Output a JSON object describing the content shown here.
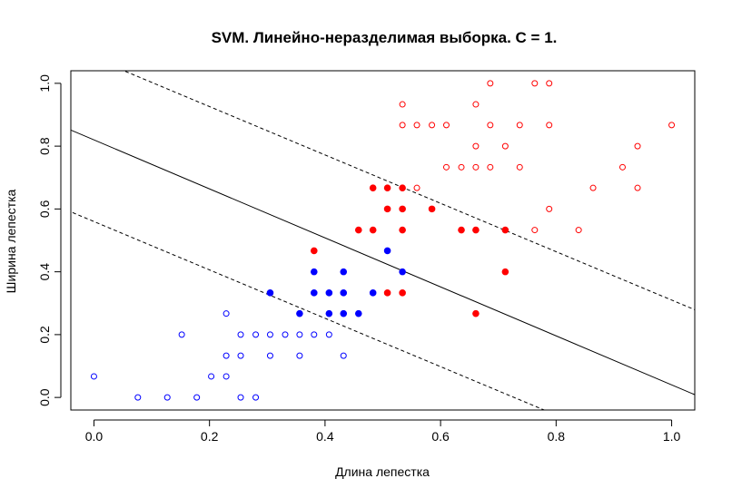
{
  "chart_data": {
    "type": "scatter",
    "title": "SVM. Линейно-неразделимая выборка. C = 1.",
    "xlabel": "Длина лепестка",
    "ylabel": "Ширина лепестка",
    "xlim": [
      -0.04,
      1.04
    ],
    "ylim": [
      -0.04,
      1.04
    ],
    "x_ticks": [
      "0.0",
      "0.2",
      "0.4",
      "0.6",
      "0.8",
      "1.0"
    ],
    "y_ticks": [
      "0.0",
      "0.2",
      "0.4",
      "0.6",
      "0.8",
      "1.0"
    ],
    "x_tick_values": [
      0,
      0.2,
      0.4,
      0.6,
      0.8,
      1.0
    ],
    "y_tick_values": [
      0,
      0.2,
      0.4,
      0.6,
      0.8,
      1.0
    ],
    "colors": {
      "class_a": "#0000ff",
      "class_b": "#ff0000",
      "lines": "#000000"
    },
    "decision_boundary": {
      "intercept": 0.82,
      "slope": -0.78
    },
    "margins": [
      {
        "intercept": 1.08,
        "slope": -0.77,
        "style": "dashed"
      },
      {
        "intercept": 0.56,
        "slope": -0.77,
        "style": "dashed"
      }
    ],
    "series": [
      {
        "class": "blue",
        "marker": "open-circle",
        "points": [
          [
            0.0,
            0.067
          ],
          [
            0.076,
            0.0
          ],
          [
            0.127,
            0.0
          ],
          [
            0.178,
            0.0
          ],
          [
            0.152,
            0.2
          ],
          [
            0.203,
            0.067
          ],
          [
            0.229,
            0.067
          ],
          [
            0.229,
            0.133
          ],
          [
            0.229,
            0.267
          ],
          [
            0.254,
            0.2
          ],
          [
            0.254,
            0.133
          ],
          [
            0.254,
            0.0
          ],
          [
            0.28,
            0.2
          ],
          [
            0.28,
            0.0
          ],
          [
            0.305,
            0.2
          ],
          [
            0.305,
            0.133
          ],
          [
            0.331,
            0.2
          ],
          [
            0.356,
            0.2
          ],
          [
            0.356,
            0.133
          ],
          [
            0.381,
            0.2
          ],
          [
            0.407,
            0.2
          ],
          [
            0.432,
            0.133
          ]
        ]
      },
      {
        "class": "blue",
        "marker": "filled-circle",
        "points": [
          [
            0.305,
            0.333
          ],
          [
            0.356,
            0.267
          ],
          [
            0.381,
            0.4
          ],
          [
            0.381,
            0.333
          ],
          [
            0.407,
            0.333
          ],
          [
            0.407,
            0.267
          ],
          [
            0.432,
            0.4
          ],
          [
            0.432,
            0.333
          ],
          [
            0.432,
            0.267
          ],
          [
            0.458,
            0.267
          ],
          [
            0.483,
            0.333
          ],
          [
            0.508,
            0.467
          ],
          [
            0.534,
            0.4
          ]
        ]
      },
      {
        "class": "red",
        "marker": "filled-circle",
        "points": [
          [
            0.381,
            0.467
          ],
          [
            0.458,
            0.533
          ],
          [
            0.483,
            0.667
          ],
          [
            0.483,
            0.533
          ],
          [
            0.508,
            0.667
          ],
          [
            0.508,
            0.6
          ],
          [
            0.508,
            0.333
          ],
          [
            0.534,
            0.667
          ],
          [
            0.534,
            0.6
          ],
          [
            0.534,
            0.533
          ],
          [
            0.534,
            0.333
          ],
          [
            0.585,
            0.6
          ],
          [
            0.636,
            0.533
          ],
          [
            0.661,
            0.533
          ],
          [
            0.661,
            0.267
          ],
          [
            0.712,
            0.533
          ],
          [
            0.712,
            0.4
          ]
        ]
      },
      {
        "class": "red",
        "marker": "open-circle",
        "points": [
          [
            0.534,
            0.933
          ],
          [
            0.534,
            0.867
          ],
          [
            0.559,
            0.867
          ],
          [
            0.559,
            0.667
          ],
          [
            0.585,
            0.867
          ],
          [
            0.61,
            0.867
          ],
          [
            0.61,
            0.733
          ],
          [
            0.636,
            0.733
          ],
          [
            0.661,
            0.933
          ],
          [
            0.661,
            0.8
          ],
          [
            0.661,
            0.733
          ],
          [
            0.686,
            1.0
          ],
          [
            0.686,
            0.867
          ],
          [
            0.686,
            0.733
          ],
          [
            0.712,
            0.8
          ],
          [
            0.737,
            0.867
          ],
          [
            0.737,
            0.733
          ],
          [
            0.763,
            1.0
          ],
          [
            0.763,
            0.533
          ],
          [
            0.788,
            1.0
          ],
          [
            0.788,
            0.867
          ],
          [
            0.788,
            0.6
          ],
          [
            0.839,
            0.533
          ],
          [
            0.864,
            0.667
          ],
          [
            0.915,
            0.733
          ],
          [
            0.941,
            0.8
          ],
          [
            0.941,
            0.667
          ],
          [
            1.0,
            0.867
          ]
        ]
      }
    ]
  }
}
